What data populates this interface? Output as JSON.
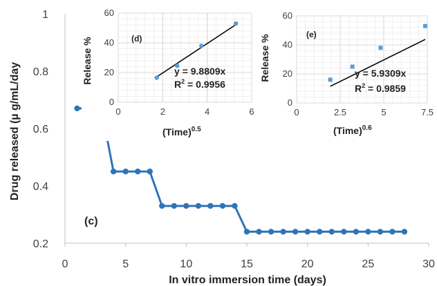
{
  "colors": {
    "series": "#2E75B6",
    "marker": "#2E75B6",
    "inset_marker": "#5B9BD5",
    "trendline": "#000000",
    "grid": "#D9D9D9",
    "axis": "#BFBFBF",
    "text": "#404040"
  },
  "chart_data": [
    {
      "type": "line",
      "panel_label": "(c)",
      "xlabel": "In vitro immersion time (days)",
      "ylabel": "Drug released (µ g/mL/day",
      "xlim": [
        0,
        30
      ],
      "ylim": [
        0.2,
        1.0
      ],
      "xticks": [
        0,
        5,
        10,
        15,
        20,
        25,
        30
      ],
      "yticks": [
        0.2,
        0.4,
        0.6,
        0.8,
        1.0
      ],
      "xtick_labels": [
        "0",
        "5",
        "10",
        "15",
        "20",
        "25",
        "30"
      ],
      "ytick_labels": [
        "0.2",
        "0.4",
        "0.6",
        "0.8",
        "1"
      ],
      "grid": false,
      "series": [
        {
          "x": [
            1,
            2,
            3,
            4,
            5,
            6,
            7,
            8,
            9,
            10,
            11,
            12,
            13,
            14,
            15,
            16,
            17,
            18,
            19,
            20,
            21,
            22,
            23,
            24,
            25,
            26,
            27,
            28
          ],
          "y": [
            0.67,
            0.67,
            0.67,
            0.45,
            0.45,
            0.45,
            0.45,
            0.33,
            0.33,
            0.33,
            0.33,
            0.33,
            0.33,
            0.33,
            0.24,
            0.24,
            0.24,
            0.24,
            0.24,
            0.24,
            0.24,
            0.24,
            0.24,
            0.24,
            0.24,
            0.24,
            0.24,
            0.24
          ]
        }
      ]
    },
    {
      "type": "scatter",
      "panel_label": "(d)",
      "xlabel": "(Time)",
      "xlabel_exponent": "0.5",
      "ylabel": "Release %",
      "xlim": [
        0,
        6
      ],
      "ylim": [
        0,
        60
      ],
      "xticks": [
        0,
        2,
        4,
        6
      ],
      "yticks": [
        0,
        20,
        40,
        60
      ],
      "xtick_labels": [
        "0",
        "2",
        "4",
        "6"
      ],
      "ytick_labels": [
        "0",
        "20",
        "40",
        "60"
      ],
      "grid": true,
      "x": [
        1.73,
        2.65,
        3.74,
        5.29
      ],
      "y": [
        16.5,
        24.5,
        38,
        53
      ],
      "trendline": {
        "slope": 9.8809,
        "x_range": [
          1.73,
          5.29
        ]
      },
      "equation": "y = 9.8809x",
      "r2_prefix": "R",
      "r2_value": " = 0.9956"
    },
    {
      "type": "scatter",
      "panel_label": "(e)",
      "xlabel": "(Time)",
      "xlabel_exponent": "0.6",
      "ylabel": "Release %",
      "xlim": [
        0,
        7.5
      ],
      "ylim": [
        0,
        60
      ],
      "xticks": [
        0,
        2.5,
        5,
        7.5
      ],
      "yticks": [
        0,
        20,
        40,
        60
      ],
      "xtick_labels": [
        "0",
        "2.5",
        "5",
        "7.5"
      ],
      "ytick_labels": [
        "0",
        "20",
        "40",
        "60"
      ],
      "grid": true,
      "x": [
        1.93,
        3.2,
        4.82,
        7.38
      ],
      "y": [
        16,
        25,
        38,
        53
      ],
      "trendline": {
        "slope": 5.9309,
        "x_range": [
          1.93,
          7.38
        ]
      },
      "equation": "y = 5.9309x",
      "r2_prefix": "R",
      "r2_value": " = 0.9859"
    }
  ]
}
